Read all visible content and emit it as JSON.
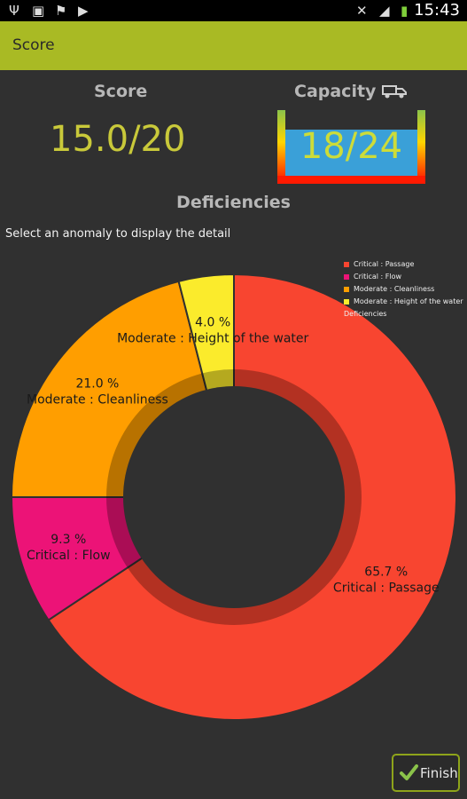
{
  "status_bar": {
    "time": "15:43",
    "left_icons": [
      "usb-icon",
      "image-icon",
      "flag-icon",
      "play-store-icon"
    ],
    "right_icons": [
      "mute-icon",
      "wifi-icon",
      "battery-icon"
    ]
  },
  "action_bar": {
    "title": "Score"
  },
  "score": {
    "label": "Score",
    "value": "15.0/20"
  },
  "capacity": {
    "label": "Capacity",
    "value": "18/24",
    "icon": "truck-icon"
  },
  "deficiencies": {
    "title": "Deficiencies",
    "hint": "Select an anomaly to display the detail"
  },
  "chart_data": {
    "type": "pie",
    "title": "Deficiencies",
    "legend_position": "top-right",
    "series": [
      {
        "name": "Critical : Passage",
        "value": 65.7,
        "label": "65.7 %",
        "color": "#f84530"
      },
      {
        "name": "Critical : Flow",
        "value": 9.3,
        "label": "9.3 %",
        "color": "#ec1377"
      },
      {
        "name": "Moderate : Cleanliness",
        "value": 21.0,
        "label": "21.0 %",
        "color": "#ff9e00"
      },
      {
        "name": "Moderate : Height of the water",
        "value": 4.0,
        "label": "4.0 %",
        "color": "#fbeb2c"
      }
    ]
  },
  "finish_button": {
    "label": "Finish"
  }
}
